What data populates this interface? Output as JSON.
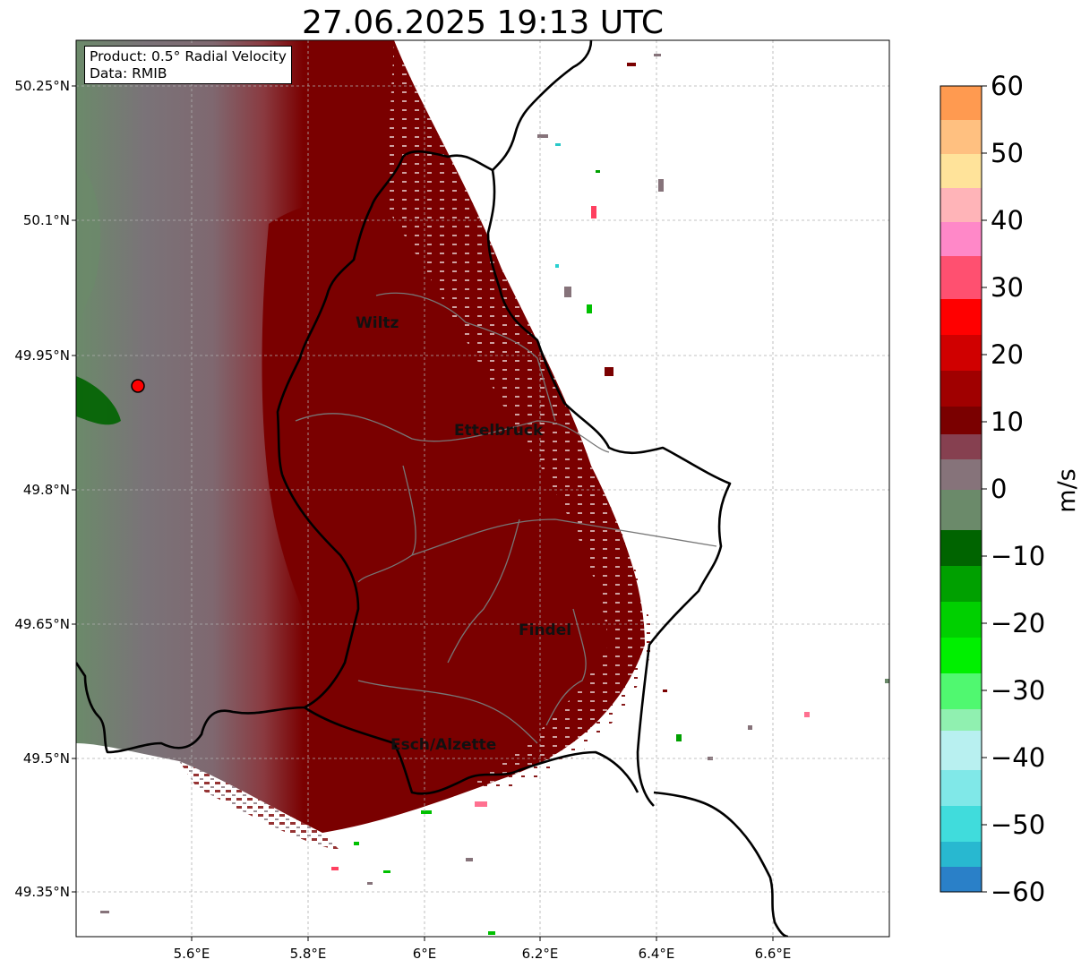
{
  "title": "27.06.2025 19:13 UTC",
  "info": {
    "product": "Product: 0.5° Radial Velocity",
    "data_source": "Data: RMIB"
  },
  "map": {
    "lat_labels": [
      "50.25°N",
      "50.1°N",
      "49.95°N",
      "49.8°N",
      "49.65°N",
      "49.5°N",
      "49.35°N"
    ],
    "lon_labels": [
      "5.6°E",
      "5.8°E",
      "6°E",
      "6.2°E",
      "6.4°E",
      "6.6°E"
    ],
    "cities": [
      "Wiltz",
      "Ettelbruck",
      "Findel",
      "Esch/Alzette"
    ],
    "gridlines": true,
    "radar_site_marker_color": "#ff0000"
  },
  "colorbar": {
    "label": "m/s",
    "ticks": [
      "60",
      "50",
      "40",
      "30",
      "20",
      "10",
      "0",
      "−10",
      "−20",
      "−30",
      "−40",
      "−50",
      "−60"
    ],
    "range": [
      -60,
      60
    ],
    "colors": {
      "positive_high": "#ff9a50",
      "positive_mid": "#ff0000",
      "positive_low": "#7a0000",
      "near_zero": "#86737a",
      "negative_low": "#006400",
      "negative_mid": "#00e000",
      "negative_high": "#2a80c8"
    }
  }
}
